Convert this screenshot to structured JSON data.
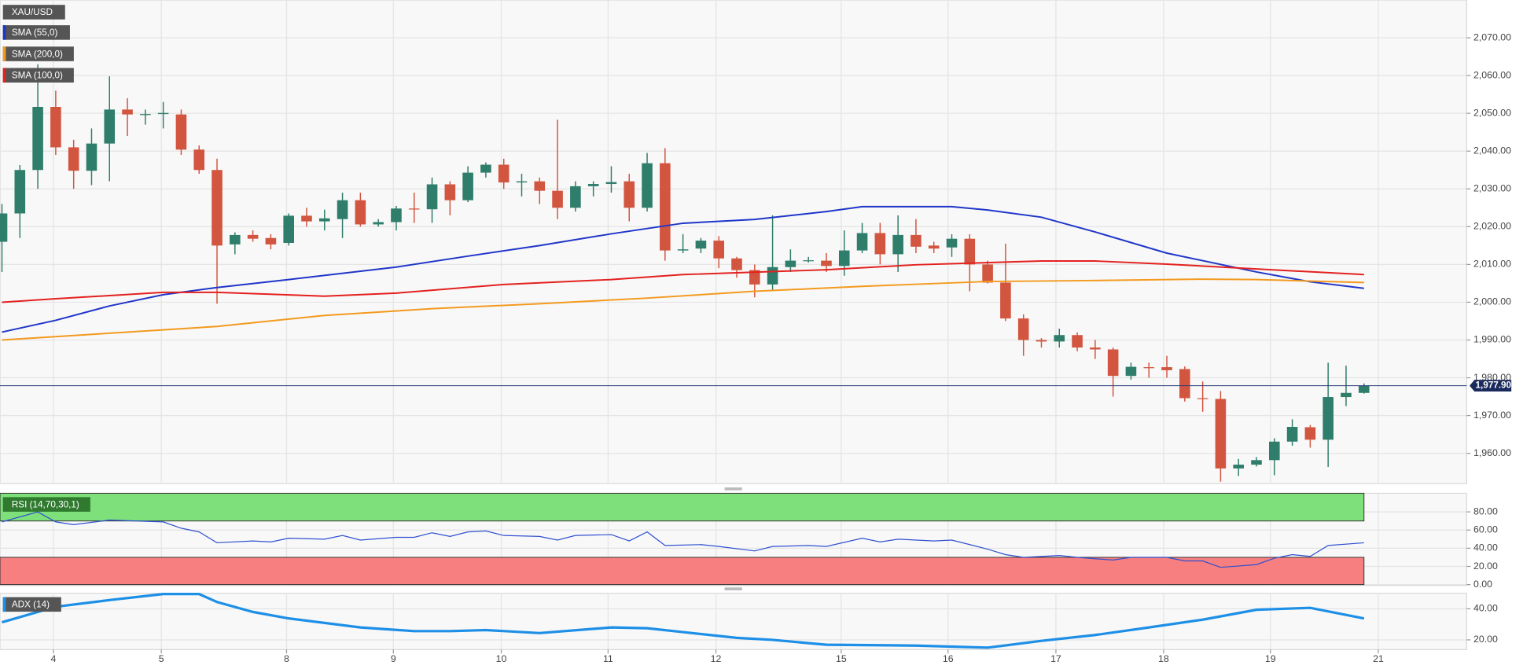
{
  "chart_data": [
    {
      "type": "candlestick",
      "name": "XAU/USD",
      "up_color": "#2f7d6b",
      "down_color": "#d2553f",
      "open": [
        2016,
        2023.5,
        2035,
        2051.7,
        2041,
        2034.8,
        2042,
        2051,
        2049.7,
        2049.8,
        2049.7,
        2040.4,
        2035,
        2015.3,
        2017.8,
        2017,
        2015.7,
        2022.9,
        2021.4,
        2022,
        2027,
        2020.6,
        2021.2,
        2024.8,
        2024.6,
        2031.2,
        2027,
        2034.3,
        2036.4,
        2031.7,
        2032,
        2029.5,
        2025,
        2030.7,
        2031.3,
        2032,
        2025,
        2036.8,
        2013.7,
        2014.2,
        2016.3,
        2011.6,
        2008.5,
        2004.7,
        2009.3,
        2011,
        2011,
        2009.6,
        2013.7,
        2018.3,
        2012.7,
        2017.8,
        2015,
        2014.5,
        2016.8,
        2010,
        2005.2,
        1995.7,
        1990,
        1989.6,
        1991.3,
        1988,
        1987.5,
        1980.5,
        1982.8,
        1982.8,
        1982.3,
        1974.6,
        1974.4,
        1956,
        1957,
        1958.2,
        1963.1,
        1966.9,
        1963.6,
        1974.9,
        1976
      ],
      "high": [
        2026,
        2036.3,
        2063,
        2056,
        2043,
        2046,
        2059.8,
        2054,
        2051,
        2053,
        2051,
        2041.5,
        2038,
        2018.5,
        2019,
        2018,
        2023.5,
        2025,
        2024.5,
        2029,
        2029,
        2022,
        2025.5,
        2029,
        2033,
        2032,
        2036,
        2037,
        2038,
        2034,
        2033,
        2048.3,
        2032,
        2032,
        2036,
        2034,
        2039.5,
        2040.8,
        2018,
        2017,
        2017.5,
        2012,
        2010,
        2023,
        2014,
        2012,
        2013,
        2019,
        2021,
        2021,
        2023,
        2022,
        2016,
        2018,
        2018,
        2011,
        2015.5,
        1996.8,
        1990.5,
        1993,
        1992,
        1990,
        1988,
        1984,
        1984,
        1985.8,
        1983,
        1979,
        1976.5,
        1958.5,
        1959,
        1964,
        1969,
        1967.5,
        1984,
        1983.2,
        1978.5
      ],
      "low": [
        2008,
        2017,
        2030,
        2039,
        2030,
        2031,
        2032,
        2044,
        2047,
        2046,
        2039,
        2034,
        1999.6,
        2012.7,
        2016,
        2014,
        2015,
        2020,
        2019,
        2017,
        2020,
        2020,
        2019,
        2021,
        2021,
        2023,
        2026.5,
        2033,
        2030,
        2028,
        2026,
        2022,
        2024,
        2028,
        2029,
        2021.4,
        2024,
        2011,
        2013,
        2013,
        2009,
        2006.5,
        2001.3,
        2003,
        2008,
        2010.5,
        2008,
        2007,
        2013,
        2010,
        2008,
        2013,
        2013,
        2012,
        2002.9,
        2005,
        1995,
        1985.8,
        1988,
        1988,
        1987,
        1985,
        1975,
        1979.5,
        1980,
        1980,
        1973.7,
        1971,
        1952.5,
        1954,
        1956.5,
        1954.2,
        1962,
        1961.5,
        1956.4,
        1972.5,
        1975.8
      ],
      "close": [
        2023.5,
        2035,
        2051.7,
        2041,
        2034.8,
        2042,
        2051,
        2049.7,
        2049.8,
        2050.1,
        2040.4,
        2035,
        2015,
        2017.8,
        2016.8,
        2015.3,
        2022.9,
        2021.4,
        2022.2,
        2027,
        2020.6,
        2021.2,
        2024.8,
        2024.6,
        2031.2,
        2027,
        2034.3,
        2036.4,
        2031.7,
        2032,
        2029.5,
        2025,
        2030.7,
        2031.3,
        2031.8,
        2025,
        2036.8,
        2013.7,
        2014,
        2016.3,
        2011.6,
        2008.5,
        2004.7,
        2009.3,
        2011,
        2011.1,
        2009.6,
        2013.7,
        2018.3,
        2012.7,
        2017.8,
        2014.7,
        2014.2,
        2016.8,
        2010,
        2005.2,
        1995.7,
        1990,
        1989.6,
        1991.3,
        1988,
        1987.5,
        1980.5,
        1982.9,
        1982.6,
        1982,
        1974.6,
        1974.4,
        1956,
        1957,
        1958.2,
        1963.1,
        1967,
        1963.6,
        1974.9,
        1976,
        1977.9
      ],
      "series": [
        {
          "name": "SMA (55,0)",
          "color": "#1f36c9",
          "x": [
            0,
            3,
            6,
            9,
            12,
            16,
            22,
            26,
            30,
            34,
            38,
            42,
            46,
            48,
            53,
            55,
            58,
            61,
            65,
            70,
            73,
            76
          ],
          "values": [
            1992.1,
            1995.2,
            1999,
            2002,
            2003.9,
            2006,
            2009.3,
            2012.2,
            2015,
            2018.1,
            2020.9,
            2021.9,
            2024,
            2025.3,
            2025.3,
            2024.4,
            2022.5,
            2018.6,
            2013,
            2008,
            2005.4,
            2003.7
          ]
        },
        {
          "name": "SMA (200,0)",
          "color": "#f39a1e",
          "x": [
            0,
            6,
            12,
            18,
            24,
            30,
            36,
            42,
            48,
            55,
            60,
            67,
            70,
            76
          ],
          "values": [
            1990,
            1991.8,
            1993.6,
            1996.5,
            1998.3,
            1999.6,
            2001.1,
            2002.9,
            2004.2,
            2005.5,
            2005.7,
            2006.1,
            2006,
            2005.2
          ]
        },
        {
          "name": "SMA (100,0)",
          "color": "#e3211f",
          "x": [
            0,
            3,
            9,
            12,
            18,
            22,
            28,
            34,
            38,
            46,
            51,
            58,
            61,
            65,
            70,
            76
          ],
          "values": [
            2000,
            2000.9,
            2002.6,
            2002.6,
            2001.6,
            2002.4,
            2004.7,
            2006,
            2007.3,
            2008.6,
            2009.9,
            2010.9,
            2010.9,
            2010.1,
            2008.8,
            2007.3
          ]
        }
      ],
      "last_price": {
        "value": 1977.9,
        "label": "1,977.90"
      },
      "xlim": [
        -0.11,
        81.73
      ],
      "ylim": [
        1952,
        2080
      ],
      "yticks": [
        {
          "value": 1960,
          "label": "1,960.00"
        },
        {
          "value": 1970,
          "label": "1,970.00"
        },
        {
          "value": 1980,
          "label": "1,980.00"
        },
        {
          "value": 1990,
          "label": "1,990.00"
        },
        {
          "value": 2000,
          "label": "2,000.00"
        },
        {
          "value": 2010,
          "label": "2,010.00"
        },
        {
          "value": 2020,
          "label": "2,020.00"
        },
        {
          "value": 2030,
          "label": "2,030.00"
        },
        {
          "value": 2040,
          "label": "2,040.00"
        },
        {
          "value": 2050,
          "label": "2,050.00"
        },
        {
          "value": 2060,
          "label": "2,060.00"
        },
        {
          "value": 2070,
          "label": "2,070.00"
        }
      ],
      "grid": true
    },
    {
      "type": "line",
      "name": "RSI (14,70,30,1)",
      "color": "#3050d0",
      "overbought": 70,
      "oversold": 30,
      "x": [
        0,
        2,
        3,
        4,
        6,
        9,
        10,
        11,
        12,
        14,
        15,
        16,
        18,
        19,
        20,
        22,
        23,
        24,
        25,
        26,
        27,
        28,
        30,
        31,
        32,
        34,
        35,
        36,
        37,
        39,
        40,
        42,
        43,
        45,
        46,
        48,
        49,
        50,
        52,
        53,
        54,
        55,
        56,
        57,
        59,
        60,
        62,
        63,
        65,
        66,
        67,
        68,
        70,
        71,
        72,
        73,
        74,
        76
      ],
      "values": [
        69,
        80,
        69,
        66,
        71,
        69,
        62,
        58,
        46,
        48,
        47,
        51,
        50,
        54,
        49,
        52,
        52,
        57,
        53,
        58,
        59,
        54,
        53,
        49,
        54,
        55,
        48,
        58,
        43,
        44,
        42,
        37,
        42,
        43,
        42,
        51,
        47,
        50,
        48,
        49,
        44,
        39,
        33,
        30,
        32,
        30,
        27,
        30,
        30,
        26,
        26,
        19,
        22,
        29,
        33,
        31,
        43,
        46
      ],
      "xlim": [
        -0.11,
        81.73
      ],
      "ylim": [
        -1,
        100.5
      ],
      "yticks": [
        {
          "value": 0,
          "label": "0.00"
        },
        {
          "value": 20,
          "label": "20.00"
        },
        {
          "value": 40,
          "label": "40.00"
        },
        {
          "value": 60,
          "label": "60.00"
        },
        {
          "value": 80,
          "label": "80.00"
        }
      ],
      "grid": true
    },
    {
      "type": "line",
      "name": "ADX (14)",
      "color": "#1e8fe6",
      "x": [
        0,
        3,
        6,
        9,
        11,
        12,
        14,
        16,
        20,
        23,
        25,
        27,
        30,
        34,
        36,
        38,
        41,
        43,
        46,
        51,
        55,
        58,
        61,
        64,
        67,
        70,
        73,
        76
      ],
      "values": [
        31.3,
        41.3,
        45.6,
        49.5,
        49.5,
        44.4,
        38,
        33.8,
        28,
        25.6,
        25.6,
        26.3,
        24.4,
        28,
        27.5,
        25,
        21.3,
        20,
        16.9,
        16.3,
        15,
        19.4,
        23.1,
        28,
        33,
        39.4,
        40.6,
        33.8
      ],
      "xlim": [
        -0.11,
        81.73
      ],
      "ylim": [
        14,
        50
      ],
      "yticks": [
        {
          "value": 20,
          "label": "20.00"
        },
        {
          "value": 40,
          "label": "40.00"
        }
      ],
      "xticks": [
        {
          "value": 2.87,
          "label": "4"
        },
        {
          "value": 8.89,
          "label": "5"
        },
        {
          "value": 15.88,
          "label": "8"
        },
        {
          "value": 21.84,
          "label": "9"
        },
        {
          "value": 27.86,
          "label": "10"
        },
        {
          "value": 33.82,
          "label": "11"
        },
        {
          "value": 39.84,
          "label": "12"
        },
        {
          "value": 46.83,
          "label": "15"
        },
        {
          "value": 52.79,
          "label": "16"
        },
        {
          "value": 58.81,
          "label": "17"
        },
        {
          "value": 64.82,
          "label": "18"
        },
        {
          "value": 70.78,
          "label": "19"
        },
        {
          "value": 76.8,
          "label": "21"
        }
      ],
      "grid": true
    }
  ]
}
